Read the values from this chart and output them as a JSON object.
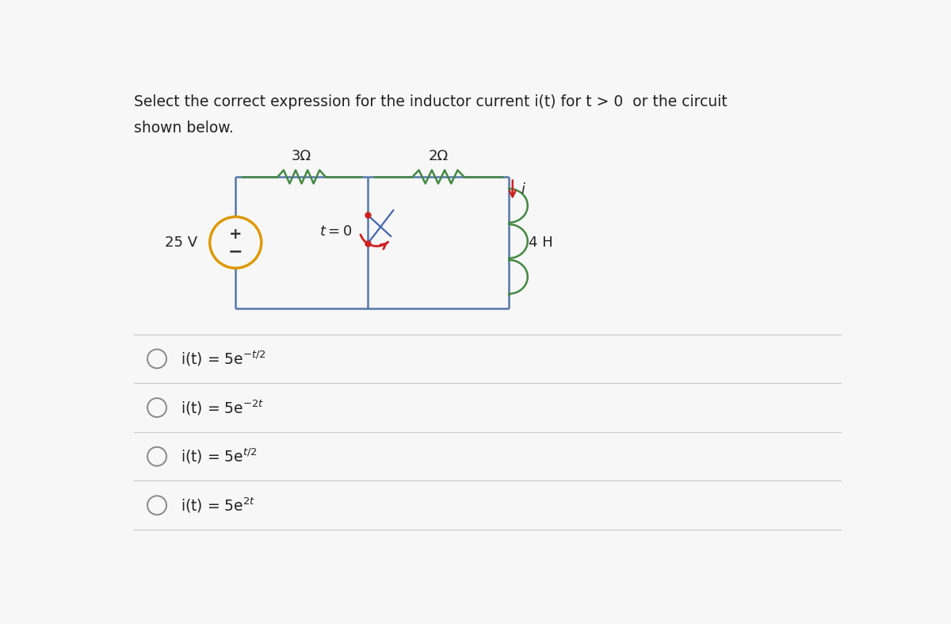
{
  "title_line1": "Select the correct expression for the inductor current i(t) for t > 0  or the circuit",
  "title_line2": "shown below.",
  "background_color": "#f7f7f7",
  "wire_color": "#5577aa",
  "resistor_color": "#448844",
  "inductor_color": "#448844",
  "switch_color": "#cc2222",
  "voltage_source_color": "#dd9900",
  "text_color": "#222222",
  "separator_color": "#cccccc",
  "voltage_label": "25 V",
  "resistor1_label": "3Ω",
  "resistor2_label": "2Ω",
  "inductor_label": "4 H",
  "switch_label": "t = 0",
  "current_label": "i",
  "current_arrow_color": "#cc2222",
  "option_texts": [
    "i(t) = 5e^{-t/2}",
    "i(t) = 5e^{-2t}",
    "i(t) = 5e^{t/2}",
    "i(t) = 5e^{2t}"
  ]
}
